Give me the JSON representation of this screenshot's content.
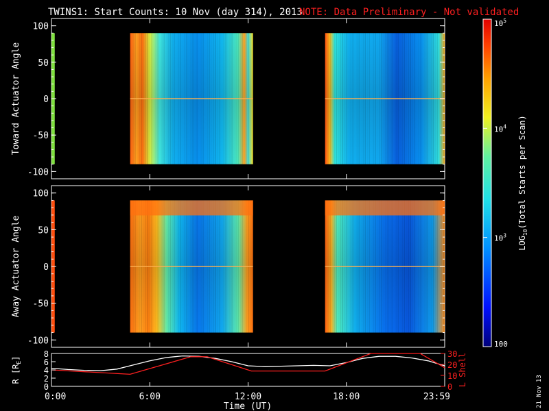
{
  "title": {
    "main": "TWINS1: Start Counts: 10 Nov (day 314), 2013",
    "note": "NOTE: Data Preliminary - Not validated",
    "note_color": "#ff2020"
  },
  "stamp": "21 Nov 13",
  "chart_data": [
    {
      "type": "heatmap",
      "ylabel": "Toward Actuator Angle",
      "ylim": [
        -110,
        110
      ],
      "yticks": [
        "100",
        "50",
        "0",
        "-50",
        "-100"
      ],
      "ytick_values": [
        100,
        50,
        0,
        -50,
        -100
      ],
      "x_unit": "hours UT",
      "xlim": [
        0,
        24
      ],
      "angle_range": [
        -90,
        90
      ],
      "data_blocks": [
        {
          "x_start": 0,
          "x_end": 0.2,
          "dominant_log_counts": 3.9
        },
        {
          "x_start": 4.8,
          "x_end": 12.3,
          "dominant_log_counts": 3.0
        },
        {
          "x_start": 16.7,
          "x_end": 24.0,
          "dominant_log_counts": 2.8
        }
      ]
    },
    {
      "type": "heatmap",
      "ylabel": "Away Actuator Angle",
      "ylim": [
        -110,
        110
      ],
      "yticks": [
        "100",
        "50",
        "0",
        "-50",
        "-100"
      ],
      "ytick_values": [
        100,
        50,
        0,
        -50,
        -100
      ],
      "x_unit": "hours UT",
      "xlim": [
        0,
        24
      ],
      "angle_range": [
        -90,
        90
      ],
      "data_blocks": [
        {
          "x_start": 0,
          "x_end": 0.2,
          "dominant_log_counts": 4.3
        },
        {
          "x_start": 4.8,
          "x_end": 12.3,
          "dominant_log_counts": 3.3
        },
        {
          "x_start": 16.7,
          "x_end": 24.0,
          "dominant_log_counts": 2.9
        }
      ]
    },
    {
      "type": "line",
      "ylabel": "R [R",
      "ylabel_sub": "E",
      "ylabel_close": "]",
      "ylim": [
        0,
        8
      ],
      "yticks": [
        "8",
        "6",
        "4",
        "2",
        "0"
      ],
      "ytick_values": [
        8,
        6,
        4,
        2,
        0
      ],
      "y2label": "L Shell",
      "y2lim": [
        0,
        30
      ],
      "y2ticks": [
        "30",
        "20",
        "10",
        "0"
      ],
      "y2tick_values": [
        30,
        20,
        10,
        0
      ],
      "xlabel": "Time (UT)",
      "xlim": [
        0,
        24
      ],
      "xticks": [
        "0:00",
        "6:00",
        "12:00",
        "18:00",
        "23:59"
      ],
      "xtick_values": [
        0,
        6,
        12,
        18,
        24
      ],
      "series": [
        {
          "color": "#ffffff",
          "axis": "left",
          "x": [
            0,
            1,
            2,
            3,
            4,
            5,
            6,
            7,
            8,
            9,
            10,
            11,
            12,
            13,
            14,
            15,
            16,
            17,
            18,
            19,
            20,
            21,
            22,
            23,
            24
          ],
          "y": [
            4.4,
            4.1,
            3.9,
            3.8,
            4.2,
            5.2,
            6.2,
            7.0,
            7.4,
            7.3,
            6.8,
            6.0,
            5.0,
            4.8,
            4.9,
            5.0,
            5.1,
            5.0,
            5.8,
            6.8,
            7.3,
            7.3,
            6.9,
            6.2,
            5.0
          ]
        },
        {
          "color": "#ff2020",
          "axis": "right",
          "x": [
            0,
            4.8,
            8.5,
            9.5,
            12.2,
            16.7,
            19.5,
            22.5,
            24
          ],
          "y": [
            15,
            11,
            27,
            27,
            14,
            14,
            32,
            30,
            17
          ]
        }
      ]
    }
  ],
  "colorbar": {
    "label": "LOG",
    "label_sub": "10",
    "label_rest": "(Total Starts per Scan)",
    "range": [
      100,
      100000
    ],
    "ticks": [
      {
        "value": 100000,
        "base": "10",
        "exp": "5"
      },
      {
        "value": 10000,
        "base": "10",
        "exp": "4"
      },
      {
        "value": 1000,
        "base": "10",
        "exp": "3"
      },
      {
        "value": 100,
        "base": "100",
        "exp": ""
      }
    ]
  }
}
